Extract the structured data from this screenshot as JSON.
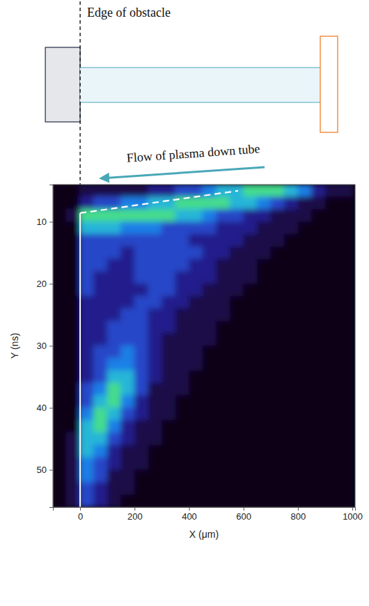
{
  "diagram": {
    "edge_label": "Edge of obstacle",
    "flow_label": "Flow of plasma down tube"
  },
  "chart_data": {
    "type": "heatmap",
    "x_label": "X (μm)",
    "y_label": "Y (ns)",
    "xlim": [
      -100,
      1010
    ],
    "ylim": [
      4,
      56
    ],
    "xticks": [
      0,
      200,
      400,
      600,
      800,
      1000
    ],
    "yticks": [
      10,
      20,
      30,
      40,
      50
    ],
    "zlim": [
      0,
      7
    ],
    "x": [
      -75,
      -25,
      25,
      75,
      125,
      175,
      225,
      275,
      325,
      375,
      425,
      475,
      525,
      575,
      625,
      675,
      725,
      775,
      825,
      875,
      925,
      975
    ],
    "y": [
      5,
      7,
      9,
      11,
      13,
      15,
      17,
      19,
      21,
      23,
      25,
      27,
      29,
      31,
      33,
      35,
      37,
      39,
      41,
      43,
      45,
      47,
      49,
      51,
      53,
      55
    ],
    "z": [
      [
        0,
        0,
        1,
        1,
        1,
        1,
        1,
        2,
        2,
        3,
        3,
        4,
        5,
        5,
        6,
        6,
        6,
        5,
        4,
        2,
        1,
        1
      ],
      [
        0,
        0,
        2,
        3,
        3,
        4,
        4,
        5,
        5,
        6,
        6,
        6,
        6,
        5,
        5,
        4,
        3,
        2,
        1,
        1,
        0,
        0
      ],
      [
        0,
        1,
        6,
        6,
        6,
        6,
        6,
        6,
        6,
        5,
        5,
        4,
        3,
        3,
        2,
        2,
        1,
        1,
        1,
        0,
        0,
        0
      ],
      [
        0,
        0,
        5,
        5,
        5,
        4,
        4,
        4,
        3,
        3,
        3,
        3,
        2,
        2,
        2,
        1,
        1,
        1,
        0,
        0,
        0,
        0
      ],
      [
        0,
        0,
        3,
        3,
        3,
        3,
        3,
        3,
        3,
        3,
        2,
        2,
        2,
        2,
        1,
        1,
        1,
        0,
        0,
        0,
        0,
        0
      ],
      [
        0,
        0,
        3,
        3,
        3,
        2,
        3,
        3,
        3,
        3,
        3,
        2,
        2,
        1,
        1,
        1,
        0,
        0,
        0,
        0,
        0,
        0
      ],
      [
        0,
        0,
        3,
        3,
        2,
        2,
        3,
        3,
        3,
        3,
        2,
        2,
        1,
        1,
        1,
        0,
        0,
        0,
        0,
        0,
        0,
        0
      ],
      [
        0,
        0,
        3,
        2,
        2,
        2,
        3,
        3,
        3,
        2,
        2,
        2,
        1,
        1,
        1,
        0,
        0,
        0,
        0,
        0,
        0,
        0
      ],
      [
        0,
        0,
        3,
        2,
        2,
        2,
        2,
        3,
        3,
        2,
        2,
        1,
        1,
        1,
        0,
        0,
        0,
        0,
        0,
        0,
        0,
        0
      ],
      [
        0,
        0,
        2,
        2,
        2,
        2,
        3,
        3,
        2,
        2,
        1,
        1,
        1,
        0,
        0,
        0,
        0,
        0,
        0,
        0,
        0,
        0
      ],
      [
        0,
        0,
        2,
        2,
        2,
        3,
        3,
        2,
        2,
        1,
        1,
        1,
        1,
        0,
        0,
        0,
        0,
        0,
        0,
        0,
        0,
        0
      ],
      [
        0,
        0,
        2,
        2,
        3,
        3,
        3,
        2,
        2,
        1,
        1,
        1,
        0,
        0,
        0,
        0,
        0,
        0,
        0,
        0,
        0,
        0
      ],
      [
        0,
        0,
        2,
        2,
        3,
        3,
        3,
        2,
        1,
        1,
        1,
        1,
        0,
        0,
        0,
        0,
        0,
        0,
        0,
        0,
        0,
        0
      ],
      [
        0,
        0,
        2,
        3,
        3,
        4,
        3,
        2,
        1,
        1,
        1,
        0,
        0,
        0,
        0,
        0,
        0,
        0,
        0,
        0,
        0,
        0
      ],
      [
        0,
        0,
        2,
        3,
        4,
        4,
        3,
        2,
        1,
        1,
        1,
        0,
        0,
        0,
        0,
        0,
        0,
        0,
        0,
        0,
        0,
        0
      ],
      [
        0,
        0,
        2,
        3,
        5,
        5,
        3,
        2,
        1,
        1,
        0,
        0,
        0,
        0,
        0,
        0,
        0,
        0,
        0,
        0,
        0,
        0
      ],
      [
        0,
        0,
        3,
        4,
        6,
        5,
        3,
        1,
        1,
        1,
        0,
        0,
        0,
        0,
        0,
        0,
        0,
        0,
        0,
        0,
        0,
        0
      ],
      [
        0,
        0,
        3,
        5,
        6,
        4,
        2,
        1,
        1,
        0,
        0,
        0,
        0,
        0,
        0,
        0,
        0,
        0,
        0,
        0,
        0,
        0
      ],
      [
        0,
        0,
        4,
        6,
        5,
        3,
        2,
        1,
        1,
        0,
        0,
        0,
        0,
        0,
        0,
        0,
        0,
        0,
        0,
        0,
        0,
        0
      ],
      [
        0,
        0,
        5,
        6,
        4,
        2,
        1,
        1,
        0,
        0,
        0,
        0,
        0,
        0,
        0,
        0,
        0,
        0,
        0,
        0,
        0,
        0
      ],
      [
        0,
        1,
        5,
        5,
        3,
        2,
        1,
        1,
        0,
        0,
        0,
        0,
        0,
        0,
        0,
        0,
        0,
        0,
        0,
        0,
        0,
        0
      ],
      [
        0,
        1,
        5,
        4,
        2,
        1,
        1,
        0,
        0,
        0,
        0,
        0,
        0,
        0,
        0,
        0,
        0,
        0,
        0,
        0,
        0,
        0
      ],
      [
        0,
        1,
        4,
        3,
        2,
        1,
        1,
        0,
        0,
        0,
        0,
        0,
        0,
        0,
        0,
        0,
        0,
        0,
        0,
        0,
        0,
        0
      ],
      [
        0,
        1,
        4,
        3,
        1,
        1,
        0,
        0,
        0,
        0,
        0,
        0,
        0,
        0,
        0,
        0,
        0,
        0,
        0,
        0,
        0,
        0
      ],
      [
        0,
        1,
        3,
        2,
        1,
        1,
        0,
        0,
        0,
        0,
        0,
        0,
        0,
        0,
        0,
        0,
        0,
        0,
        0,
        0,
        0,
        0
      ],
      [
        0,
        1,
        3,
        2,
        1,
        0,
        0,
        0,
        0,
        0,
        0,
        0,
        0,
        0,
        0,
        0,
        0,
        0,
        0,
        0,
        0,
        0
      ]
    ],
    "front_line": {
      "x": [
        0,
        580
      ],
      "y": [
        8.6,
        5.0
      ]
    },
    "edge_line": {
      "x": [
        0,
        0
      ],
      "y": [
        8.6,
        56
      ]
    }
  }
}
